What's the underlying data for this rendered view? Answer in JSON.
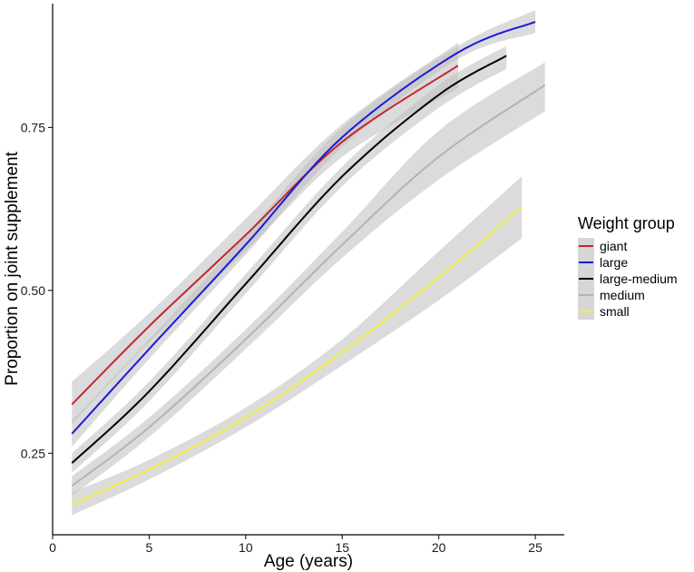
{
  "chart_data": {
    "type": "line",
    "title": "",
    "xlabel": "Age (years)",
    "ylabel": "Proportion on joint supplement",
    "xlim": [
      0,
      26.5
    ],
    "ylim": [
      0.125,
      0.94
    ],
    "xticks": [
      0,
      5,
      10,
      15,
      20,
      25
    ],
    "yticks": [
      0.25,
      0.5,
      0.75
    ],
    "ytick_labels": [
      "0.25",
      "0.50",
      "0.75"
    ],
    "grid": false,
    "legend": {
      "title": "Weight group",
      "position": "right"
    },
    "series": [
      {
        "name": "giant",
        "color": "#c0282d",
        "x": [
          1,
          5,
          10,
          15,
          21
        ],
        "y": [
          0.325,
          0.445,
          0.585,
          0.728,
          0.845
        ],
        "lower": [
          0.295,
          0.42,
          0.56,
          0.705,
          0.81
        ],
        "upper": [
          0.36,
          0.465,
          0.61,
          0.755,
          0.88
        ]
      },
      {
        "name": "large",
        "color": "#1a1adb",
        "x": [
          1,
          5,
          10,
          15,
          21,
          25
        ],
        "y": [
          0.28,
          0.41,
          0.57,
          0.735,
          0.865,
          0.912
        ],
        "lower": [
          0.26,
          0.395,
          0.555,
          0.72,
          0.855,
          0.895
        ],
        "upper": [
          0.3,
          0.425,
          0.585,
          0.75,
          0.875,
          0.93
        ]
      },
      {
        "name": "large-medium",
        "color": "#000000",
        "x": [
          1,
          5,
          10,
          15,
          20,
          23.5
        ],
        "y": [
          0.235,
          0.345,
          0.51,
          0.675,
          0.8,
          0.86
        ],
        "lower": [
          0.22,
          0.33,
          0.495,
          0.66,
          0.78,
          0.84
        ],
        "upper": [
          0.25,
          0.36,
          0.525,
          0.69,
          0.815,
          0.875
        ]
      },
      {
        "name": "medium",
        "color": "#b3b3b3",
        "x": [
          1,
          5,
          10,
          15,
          20,
          25.5
        ],
        "y": [
          0.2,
          0.29,
          0.425,
          0.57,
          0.705,
          0.815
        ],
        "lower": [
          0.185,
          0.275,
          0.41,
          0.55,
          0.67,
          0.775
        ],
        "upper": [
          0.215,
          0.305,
          0.44,
          0.59,
          0.745,
          0.85
        ]
      },
      {
        "name": "small",
        "color": "#f2ee42",
        "x": [
          1,
          5,
          10,
          15,
          20,
          24.3
        ],
        "y": [
          0.172,
          0.225,
          0.305,
          0.405,
          0.52,
          0.628
        ],
        "lower": [
          0.155,
          0.21,
          0.29,
          0.385,
          0.485,
          0.58
        ],
        "upper": [
          0.19,
          0.24,
          0.32,
          0.425,
          0.56,
          0.675
        ]
      }
    ]
  }
}
